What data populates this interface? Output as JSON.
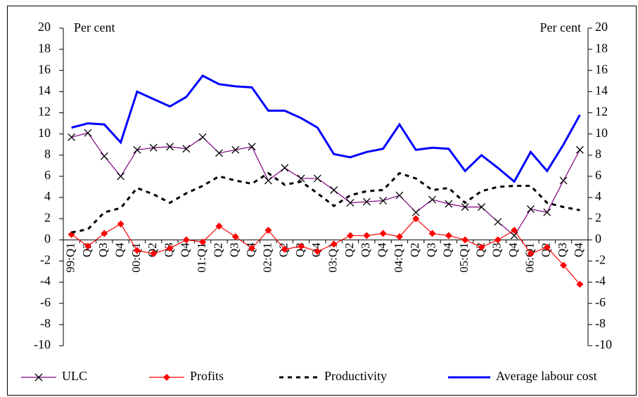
{
  "chart_data": {
    "type": "line",
    "y_label": "Per cent",
    "y2_label": "Per cent",
    "categories": [
      "99:Q1",
      "Q2",
      "Q3",
      "Q4",
      "00:Q1",
      "Q2",
      "Q3",
      "Q4",
      "01:Q1",
      "Q2",
      "Q3",
      "Q4",
      "02:Q1",
      "Q2",
      "Q3",
      "Q4",
      "03:Q1",
      "Q2",
      "Q3",
      "Q4",
      "04:Q1",
      "Q2",
      "Q3",
      "Q4",
      "05:Q1",
      "Q2",
      "Q3",
      "Q4",
      "06:Q1",
      "Q2",
      "Q3",
      "Q4"
    ],
    "series": [
      {
        "name": "ULC",
        "color": "#800080",
        "marker": "x",
        "dashed": false,
        "values": [
          9.7,
          10.1,
          7.9,
          6.0,
          8.5,
          8.7,
          8.8,
          8.6,
          9.7,
          8.2,
          8.5,
          8.8,
          5.6,
          6.8,
          5.8,
          5.8,
          4.7,
          3.5,
          3.6,
          3.7,
          4.2,
          2.6,
          3.8,
          3.4,
          3.1,
          3.1,
          1.7,
          0.4,
          2.9,
          2.6,
          5.6,
          8.5
        ]
      },
      {
        "name": "Profits",
        "color": "#ff0000",
        "marker": "diamond",
        "dashed": false,
        "values": [
          0.5,
          -0.6,
          0.6,
          1.5,
          -1.0,
          -1.3,
          -0.8,
          0.0,
          -0.2,
          1.3,
          0.3,
          -0.8,
          0.9,
          -0.9,
          -0.6,
          -1.1,
          -0.4,
          0.4,
          0.4,
          0.6,
          0.3,
          2.0,
          0.6,
          0.4,
          0.0,
          -0.7,
          0.0,
          0.9,
          -1.3,
          -0.7,
          -2.4,
          -4.2
        ]
      },
      {
        "name": "Productivity",
        "color": "#000000",
        "marker": "none",
        "dashed": true,
        "values": [
          0.7,
          1.0,
          2.6,
          3.0,
          4.9,
          4.3,
          3.5,
          4.4,
          5.1,
          6.0,
          5.6,
          5.3,
          6.3,
          5.2,
          5.5,
          4.4,
          3.2,
          4.2,
          4.6,
          4.7,
          6.3,
          5.8,
          4.7,
          4.9,
          3.5,
          4.6,
          5.0,
          5.1,
          5.1,
          3.5,
          3.1,
          2.8
        ]
      },
      {
        "name": "Average labour cost",
        "color": "#0000ff",
        "marker": "none",
        "dashed": false,
        "values": [
          10.6,
          11.0,
          10.9,
          9.2,
          14.0,
          13.3,
          12.6,
          13.5,
          15.5,
          14.7,
          14.5,
          14.4,
          12.2,
          12.2,
          11.5,
          10.6,
          8.1,
          7.8,
          8.3,
          8.6,
          10.9,
          8.5,
          8.7,
          8.6,
          6.5,
          8.0,
          6.8,
          5.5,
          8.3,
          6.5,
          9.0,
          11.8
        ]
      }
    ],
    "ylim": [
      -10,
      20
    ],
    "yticks": [
      -10,
      -8,
      -6,
      -4,
      -2,
      0,
      2,
      4,
      6,
      8,
      10,
      12,
      14,
      16,
      18,
      20
    ],
    "y2lim": [
      -10,
      20
    ],
    "y2ticks": [
      -10,
      -8,
      -6,
      -4,
      -2,
      0,
      2,
      4,
      6,
      8,
      10,
      12,
      14,
      16,
      18,
      20
    ],
    "grid": false,
    "legend": "bottom"
  }
}
